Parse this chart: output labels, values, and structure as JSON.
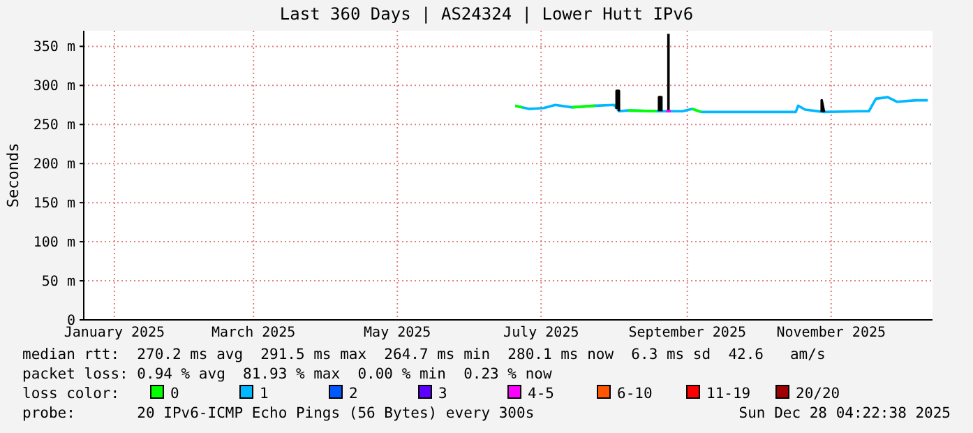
{
  "chart_data": {
    "type": "line",
    "title": "Last 360 Days | AS24324 | Lower Hutt IPv6",
    "ylabel": "Seconds",
    "x": [
      "2025-07-04",
      "2025-07-07",
      "2025-07-10",
      "2025-07-16",
      "2025-07-21",
      "2025-07-28",
      "2025-08-07",
      "2025-08-15",
      "2025-08-17",
      "2025-08-21",
      "2025-09-02",
      "2025-09-06",
      "2025-09-08",
      "2025-09-13",
      "2025-09-17",
      "2025-09-21",
      "2025-10-09",
      "2025-10-31",
      "2025-11-01",
      "2025-11-04",
      "2025-11-12",
      "2025-11-27",
      "2025-12-01",
      "2025-12-04",
      "2025-12-09",
      "2025-12-13",
      "2025-12-21",
      "2025-12-26"
    ],
    "series": [
      {
        "name": "0",
        "color": "#00ff00",
        "values": [
          274,
          272,
          null,
          null,
          null,
          272,
          274,
          null,
          null,
          268,
          267,
          null,
          null,
          null,
          270,
          266,
          null,
          null,
          null,
          null,
          null,
          null,
          null,
          null,
          null,
          null,
          null,
          null
        ]
      },
      {
        "name": "1",
        "color": "#00b8ff",
        "values": [
          274,
          272,
          270,
          271,
          275,
          272,
          274,
          275,
          267,
          268,
          267,
          267,
          267,
          267,
          270,
          266,
          266,
          266,
          274,
          269,
          266,
          267,
          267,
          283,
          285,
          279,
          281,
          281
        ]
      },
      {
        "name": "2",
        "color": "#0059ff",
        "values": [
          null,
          null,
          null,
          null,
          null,
          null,
          null,
          null,
          null,
          null,
          null,
          null,
          null,
          null,
          null,
          null,
          null,
          null,
          null,
          null,
          null,
          null,
          null,
          null,
          null,
          null,
          null,
          null
        ]
      },
      {
        "name": "3",
        "color": "#5e00ff",
        "values": [
          null,
          null,
          null,
          null,
          null,
          null,
          null,
          null,
          null,
          null,
          null,
          null,
          null,
          null,
          null,
          null,
          null,
          null,
          null,
          null,
          null,
          null,
          null,
          null,
          null,
          null,
          null,
          null
        ]
      },
      {
        "name": "4-5",
        "color": "#ff00ff",
        "values": [
          null,
          null,
          null,
          null,
          null,
          null,
          null,
          null,
          null,
          null,
          null,
          267,
          267,
          null,
          null,
          null,
          null,
          null,
          null,
          null,
          null,
          null,
          null,
          null,
          null,
          null,
          null,
          null
        ]
      },
      {
        "name": "6-10",
        "color": "#ff5500",
        "values": [
          null,
          null,
          null,
          null,
          null,
          null,
          null,
          null,
          null,
          null,
          null,
          null,
          null,
          null,
          null,
          null,
          null,
          null,
          null,
          null,
          null,
          null,
          null,
          null,
          null,
          null,
          null,
          null
        ]
      },
      {
        "name": "11-19",
        "color": "#ff0000",
        "values": [
          null,
          null,
          null,
          null,
          null,
          null,
          null,
          null,
          null,
          null,
          null,
          null,
          null,
          null,
          null,
          null,
          null,
          null,
          null,
          null,
          null,
          null,
          null,
          null,
          null,
          null,
          null,
          null
        ]
      },
      {
        "name": "20/20",
        "color": "#a10000",
        "values": [
          null,
          null,
          null,
          null,
          null,
          null,
          null,
          null,
          null,
          null,
          null,
          null,
          null,
          null,
          null,
          null,
          null,
          null,
          null,
          null,
          null,
          null,
          null,
          null,
          null,
          null,
          null,
          null
        ]
      },
      {
        "color": "#000000",
        "x": [
          "2025-08-16",
          "2025-08-16",
          "2025-08-17",
          "2025-08-17",
          "2025-08-30",
          "2025-09-03",
          "2025-09-03",
          "2025-09-04",
          "2025-09-04",
          "2025-09-05",
          "2025-09-07",
          "2025-09-07",
          "2025-10-01",
          "2025-11-11",
          "2025-11-11",
          "2025-11-12"
        ],
        "values": [
          270,
          293,
          293,
          267,
          null,
          267,
          285,
          285,
          267,
          null,
          267,
          366,
          null,
          266,
          281,
          266
        ]
      }
    ],
    "xlim": [
      "2025-01-02",
      "2025-12-28"
    ],
    "xticks": [
      {
        "value": "2025-01-15",
        "label": "January 2025"
      },
      {
        "value": "2025-03-15",
        "label": "March 2025"
      },
      {
        "value": "2025-05-15",
        "label": "May 2025"
      },
      {
        "value": "2025-07-15",
        "label": "July 2025"
      },
      {
        "value": "2025-09-15",
        "label": "September 2025"
      },
      {
        "value": "2025-11-15",
        "label": "November 2025"
      }
    ],
    "ylim": [
      0,
      370
    ],
    "yticks": [
      0,
      {
        "value": 50,
        "label": "50 m"
      },
      {
        "value": 100,
        "label": "100 m"
      },
      {
        "value": 150,
        "label": "150 m"
      },
      {
        "value": 200,
        "label": "200 m"
      },
      {
        "value": 250,
        "label": "250 m"
      },
      {
        "value": 300,
        "label": "300 m"
      },
      {
        "value": 350,
        "label": "350 m"
      }
    ],
    "grid": true,
    "legend": "bottom",
    "legend_title": "loss color:",
    "line_style": "solid",
    "annotations": [
      "median rtt:  270.2 ms avg  291.5 ms max  264.7 ms min  280.1 ms now  6.3 ms sd  42.6   am/s",
      "packet loss: 0.94 % avg  81.93 % max  0.00 % min  0.23 % now",
      "probe:       20 IPv6-ICMP Echo Pings (56 Bytes) every 300s",
      "Sun Dec 28 04:22:38 2025"
    ]
  }
}
